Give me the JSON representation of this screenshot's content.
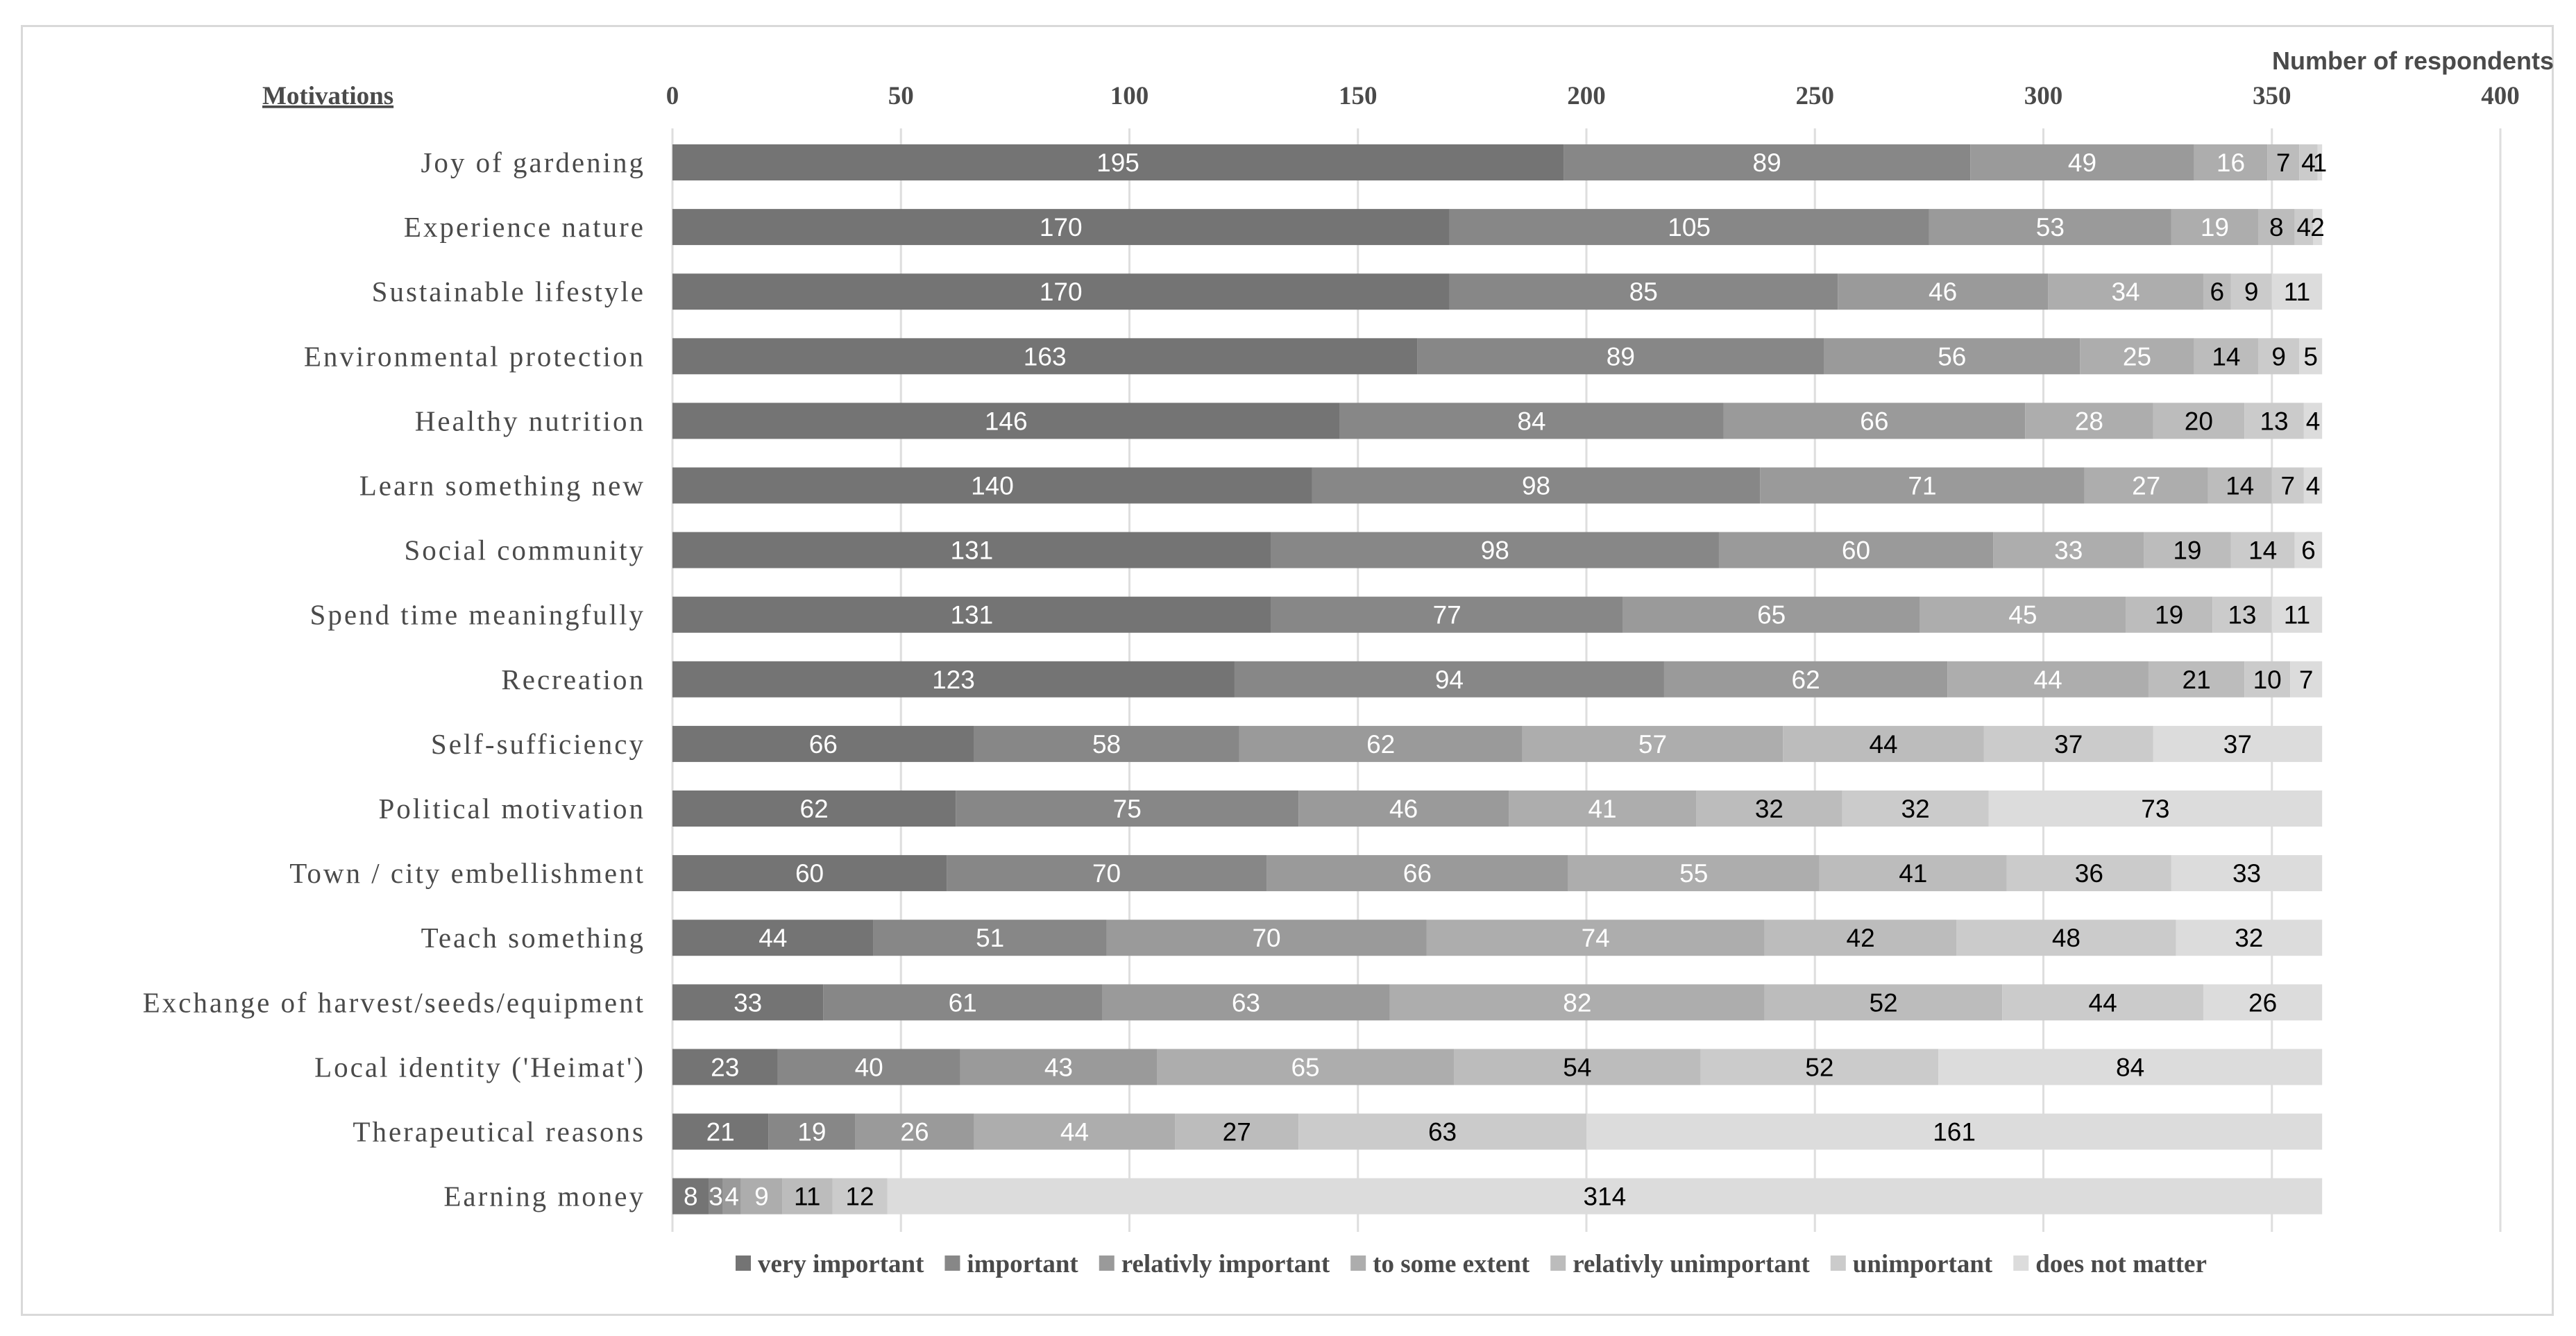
{
  "chart_data": {
    "type": "bar",
    "orientation": "horizontal",
    "stacked": true,
    "title": "Motivations",
    "xlabel": "Number of respondents",
    "xlim": [
      0,
      400
    ],
    "xticks": [
      0,
      50,
      100,
      150,
      200,
      250,
      300,
      350,
      400
    ],
    "grid": true,
    "legend_position": "bottom",
    "categories": [
      "Joy of gardening",
      "Experience nature",
      "Sustainable lifestyle",
      "Environmental protection",
      "Healthy nutrition",
      "Learn something new",
      "Social community",
      "Spend time meaningfully",
      "Recreation",
      "Self-sufficiency",
      "Political motivation",
      "Town / city embellishment",
      "Teach something",
      "Exchange of harvest/seeds/equipment",
      "Local identity ('Heimat')",
      "Therapeutical reasons",
      "Earning money"
    ],
    "series": [
      {
        "name": "very important",
        "color": "#747474",
        "label_color": "#ffffff",
        "values": [
          195,
          170,
          170,
          163,
          146,
          140,
          131,
          131,
          123,
          66,
          62,
          60,
          44,
          33,
          23,
          21,
          8
        ]
      },
      {
        "name": "important",
        "color": "#878787",
        "label_color": "#ffffff",
        "values": [
          89,
          105,
          85,
          89,
          84,
          98,
          98,
          77,
          94,
          58,
          75,
          70,
          51,
          61,
          40,
          19,
          3
        ]
      },
      {
        "name": "relativly important",
        "color": "#9a9a9a",
        "label_color": "#ffffff",
        "values": [
          49,
          53,
          46,
          56,
          66,
          71,
          60,
          65,
          62,
          62,
          46,
          66,
          70,
          63,
          43,
          26,
          4
        ]
      },
      {
        "name": "to some extent",
        "color": "#adadad",
        "label_color": "#ffffff",
        "values": [
          16,
          19,
          34,
          25,
          28,
          27,
          33,
          45,
          44,
          57,
          41,
          55,
          74,
          82,
          65,
          44,
          9
        ]
      },
      {
        "name": "relativly unimportant",
        "color": "#bcbcbc",
        "label_color": "#000000",
        "values": [
          7,
          8,
          6,
          14,
          20,
          14,
          19,
          19,
          21,
          44,
          32,
          41,
          42,
          52,
          54,
          27,
          11
        ]
      },
      {
        "name": "unimportant",
        "color": "#cbcbcb",
        "label_color": "#000000",
        "values": [
          4,
          4,
          9,
          9,
          13,
          7,
          14,
          13,
          10,
          37,
          32,
          36,
          48,
          44,
          52,
          63,
          12
        ]
      },
      {
        "name": "does not matter",
        "color": "#dcdcdc",
        "label_color": "#000000",
        "values": [
          1,
          2,
          11,
          5,
          4,
          4,
          6,
          11,
          7,
          37,
          73,
          33,
          32,
          26,
          84,
          161,
          314
        ]
      }
    ]
  }
}
